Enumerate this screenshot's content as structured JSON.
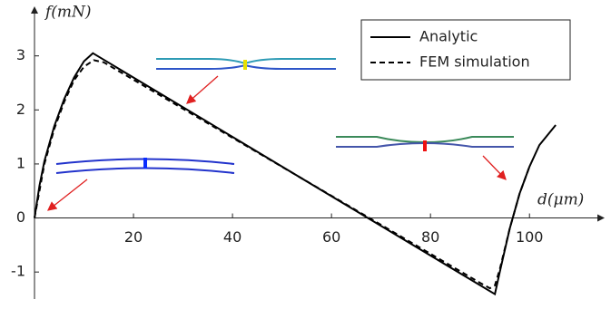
{
  "chart_data": {
    "type": "line",
    "x_label": "d(μm)",
    "y_label": "f(mN)",
    "xlim": [
      0,
      115
    ],
    "ylim": [
      -1.5,
      3.9
    ],
    "xticks": [
      20,
      40,
      60,
      80,
      100
    ],
    "yticks": [
      -1,
      0,
      1,
      2,
      3
    ],
    "grid": false,
    "legend": "upper right",
    "series": [
      {
        "name": "Analytic",
        "color": "#000000",
        "dash": "solid",
        "x": [
          0,
          1,
          2,
          4,
          6,
          8,
          10,
          11.8,
          93,
          94,
          96,
          98,
          100,
          102,
          105.3
        ],
        "values": [
          0,
          0.6,
          1.05,
          1.7,
          2.2,
          2.6,
          2.9,
          3.05,
          -1.41,
          -1.0,
          -0.2,
          0.45,
          0.95,
          1.35,
          1.72
        ]
      },
      {
        "name": "FEM simulation",
        "color": "#000000",
        "dash": "dashed",
        "x": [
          0,
          2,
          4,
          6,
          8,
          10,
          12,
          14,
          90,
          92,
          93,
          94,
          96,
          98,
          100
        ],
        "values": [
          0,
          1.0,
          1.65,
          2.15,
          2.55,
          2.8,
          2.92,
          2.88,
          -1.2,
          -1.3,
          -1.25,
          -0.95,
          -0.2,
          0.45,
          0.95
        ]
      }
    ]
  }
}
